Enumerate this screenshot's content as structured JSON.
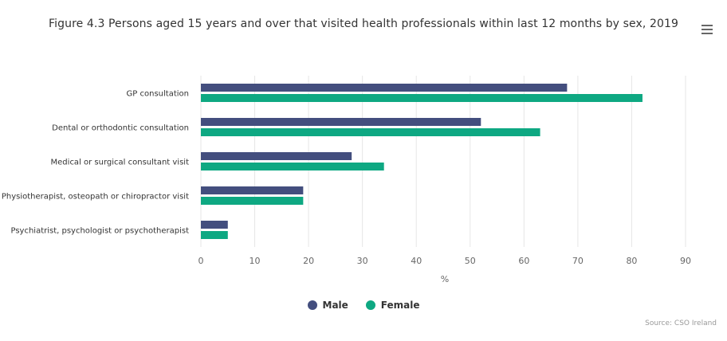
{
  "header": {
    "title": "Figure 4.3 Persons aged 15 years and over that visited health professionals within last 12 months by sex, 2019",
    "menu_icon": "hamburger-menu-icon"
  },
  "chart_data": {
    "type": "bar",
    "orientation": "horizontal",
    "title": "Figure 4.3 Persons aged 15 years and over that visited health professionals within last 12 months by sex, 2019",
    "xlabel": "%",
    "ylabel": "",
    "xlim": [
      0,
      90
    ],
    "x_ticks": [
      "0",
      "10",
      "20",
      "30",
      "40",
      "50",
      "60",
      "70",
      "80",
      "90"
    ],
    "grid": "vertical",
    "legend_position": "bottom",
    "categories": [
      "GP consultation",
      "Dental or orthodontic consultation",
      "Medical or surgical consultant visit",
      "Physiotherapist, osteopath or chiropractor visit",
      "Psychiatrist, psychologist or psychotherapist"
    ],
    "series": [
      {
        "name": "Male",
        "color": "#434e7e",
        "values": [
          68,
          52,
          28,
          19,
          5
        ]
      },
      {
        "name": "Female",
        "color": "#0ea882",
        "values": [
          82,
          63,
          34,
          19,
          5
        ]
      }
    ]
  },
  "credits": "Source: CSO Ireland"
}
